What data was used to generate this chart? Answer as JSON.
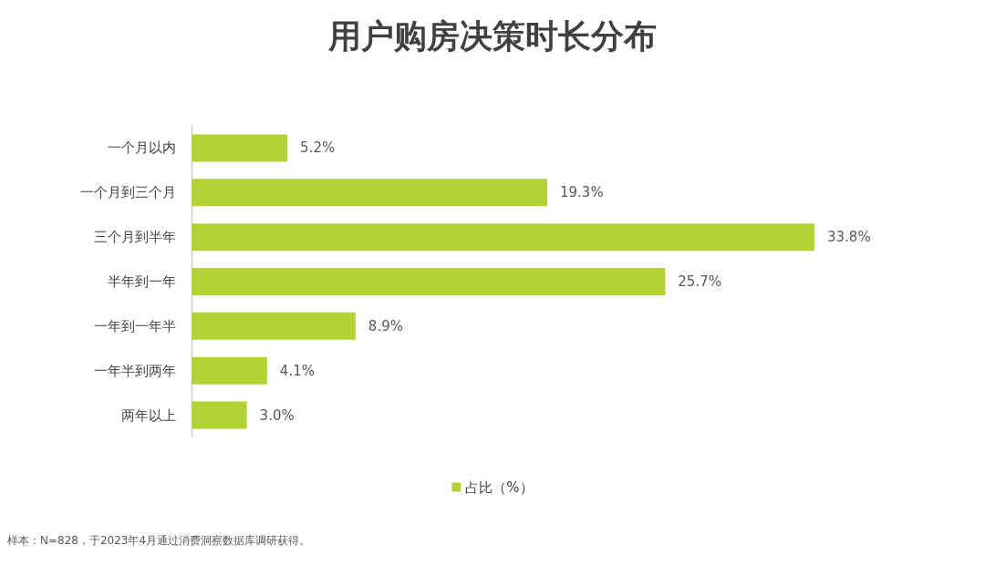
{
  "chart_data": {
    "type": "bar",
    "orientation": "horizontal",
    "title": "用户购房决策时长分布",
    "categories": [
      "一个月以内",
      "一个月到三个月",
      "三个月到半年",
      "半年到一年",
      "一年到一年半",
      "一年半到两年",
      "两年以上"
    ],
    "series": [
      {
        "name": "占比（%）",
        "color": "#b3d235",
        "values": [
          5.2,
          19.3,
          33.8,
          25.7,
          8.9,
          4.1,
          3.0
        ],
        "value_labels": [
          "5.2%",
          "19.3%",
          "33.8%",
          "25.7%",
          "8.9%",
          "4.1%",
          "3.0%"
        ]
      }
    ],
    "legend": "bottom",
    "tick_labels": "y",
    "annotations": [
      "样本：N=828，于2023年4月通过消费洞察数据库调研获得。"
    ]
  }
}
